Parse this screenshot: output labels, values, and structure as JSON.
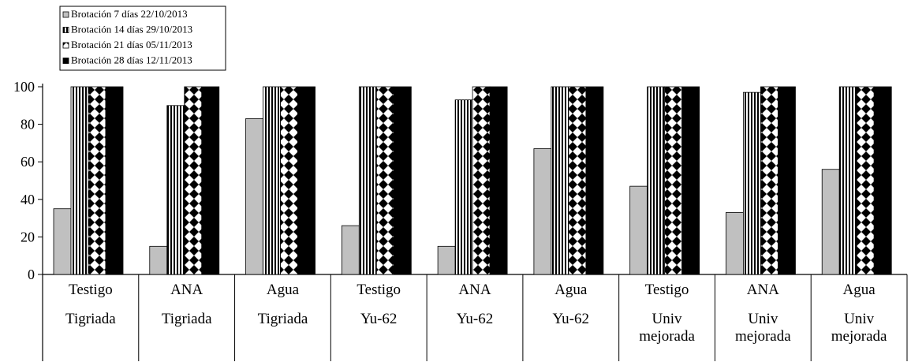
{
  "chart_data": {
    "type": "bar",
    "title": "",
    "xlabel": "",
    "ylabel": "",
    "ylim": [
      0,
      100
    ],
    "yticks": [
      0,
      20,
      40,
      60,
      80,
      100
    ],
    "grid": false,
    "legend_position": "top-left",
    "categories": [
      [
        "Testigo",
        "Tigriada"
      ],
      [
        "ANA",
        "Tigriada"
      ],
      [
        "Agua",
        "Tigriada"
      ],
      [
        "Testigo",
        "Yu-62"
      ],
      [
        "ANA",
        "Yu-62"
      ],
      [
        "Agua",
        "Yu-62"
      ],
      [
        "Testigo",
        "Univ",
        "mejorada"
      ],
      [
        "ANA",
        "Univ",
        "mejorada"
      ],
      [
        "Agua",
        "Univ",
        "mejorada"
      ]
    ],
    "series": [
      {
        "name": "Brotación 7 días 22/10/2013",
        "pattern": "solid-gray",
        "color": "#c0c0c0",
        "values": [
          35,
          15,
          83,
          26,
          15,
          67,
          47,
          33,
          56
        ]
      },
      {
        "name": "Brotación 14 días 29/10/2013",
        "pattern": "vertical-lines",
        "color": "#000000",
        "values": [
          100,
          90,
          100,
          100,
          93,
          100,
          100,
          97,
          100
        ]
      },
      {
        "name": "Brotación 21 días 05/11/2013",
        "pattern": "diamonds",
        "color": "#000000",
        "values": [
          100,
          100,
          100,
          100,
          100,
          100,
          100,
          100,
          100
        ]
      },
      {
        "name": "Brotación 28 días 12/11/2013",
        "pattern": "solid-black",
        "color": "#000000",
        "values": [
          100,
          100,
          100,
          100,
          100,
          100,
          100,
          100,
          100
        ]
      }
    ]
  }
}
